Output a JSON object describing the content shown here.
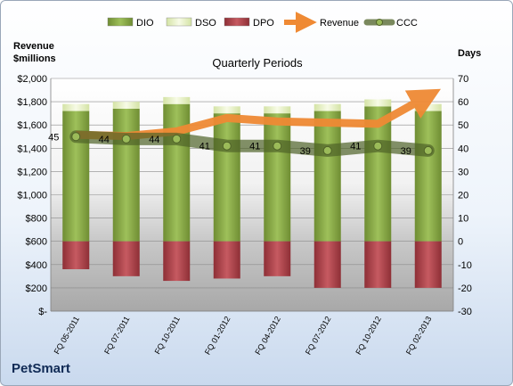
{
  "chart_data": {
    "type": "bar",
    "title": "",
    "subtitle": "Quarterly Periods",
    "company": "PetSmart",
    "left_axis_title_line1": "Revenue",
    "left_axis_title_line2": "$millions",
    "right_axis_title": "Days",
    "categories": [
      "FQ 05-2011",
      "FQ 07-2011",
      "FQ 10-2011",
      "FQ 01-2012",
      "FQ 04-2012",
      "FQ 07-2012",
      "FQ 10-2012",
      "FQ 02-2013"
    ],
    "left_axis": {
      "min": 0,
      "max": 2000,
      "step": 200,
      "tick_labels": [
        "$-",
        "$200",
        "$400",
        "$600",
        "$800",
        "$1,000",
        "$1,200",
        "$1,400",
        "$1,600",
        "$1,800",
        "$2,000"
      ]
    },
    "right_axis": {
      "min": -30,
      "max": 70,
      "step": 10,
      "tick_labels": [
        "-30",
        "-20",
        "-10",
        "0",
        "10",
        "20",
        "30",
        "40",
        "50",
        "60",
        "70"
      ]
    },
    "legend_position": "top",
    "series": [
      {
        "name": "DIO",
        "axis": "right",
        "kind": "stacked-bar",
        "color": "#8fb04a",
        "values": [
          56,
          57,
          59,
          55,
          55,
          56,
          58,
          56
        ]
      },
      {
        "name": "DSO",
        "axis": "right",
        "kind": "stacked-bar",
        "color": "#eef6cf",
        "values": [
          3,
          3,
          3,
          3,
          3,
          3,
          3,
          3
        ]
      },
      {
        "name": "DPO",
        "axis": "right",
        "kind": "negative-bar",
        "color": "#b5454c",
        "values": [
          -12,
          -15,
          -17,
          -16,
          -15,
          -20,
          -20,
          -20
        ]
      },
      {
        "name": "Revenue",
        "axis": "left",
        "kind": "line",
        "color": "#ef8a34",
        "values": [
          1515,
          1505,
          1545,
          1660,
          1630,
          1620,
          1610,
          1850
        ]
      },
      {
        "name": "CCC",
        "axis": "right",
        "kind": "line",
        "color": "#4f6228",
        "values": [
          45,
          44,
          44,
          41,
          41,
          39,
          41,
          39
        ]
      }
    ],
    "ccc_labels": [
      "45",
      "44",
      "44",
      "41",
      "41",
      "39",
      "41",
      "39"
    ],
    "grid": true
  }
}
